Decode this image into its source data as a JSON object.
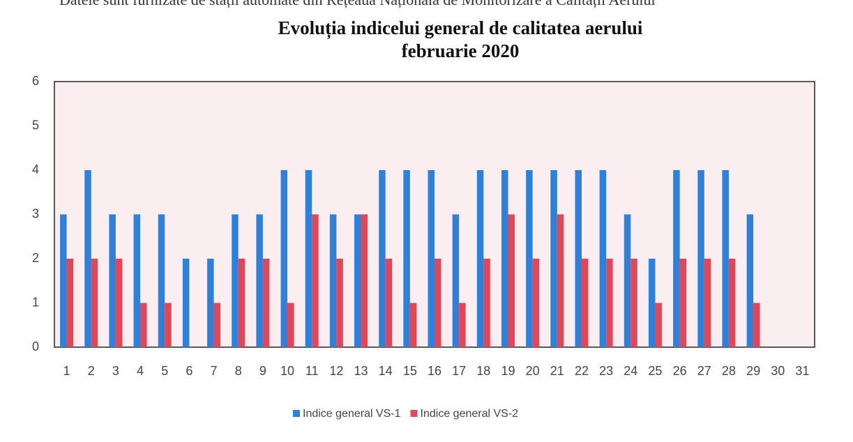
{
  "header_text": "Datele sunt furnizate de stații automate din Rețeaua Națională de Monitorizare a Calității Aerului",
  "chart_data": {
    "type": "bar",
    "title": "Evoluția indicelui general de calitatea aerului",
    "subtitle": "februarie 2020",
    "categories": [
      "1",
      "2",
      "3",
      "4",
      "5",
      "6",
      "7",
      "8",
      "9",
      "10",
      "11",
      "12",
      "13",
      "14",
      "15",
      "16",
      "17",
      "18",
      "19",
      "20",
      "21",
      "22",
      "23",
      "24",
      "25",
      "26",
      "27",
      "28",
      "29",
      "30",
      "31"
    ],
    "series": [
      {
        "name": "Indice general VS-1",
        "color": "#2f80d8",
        "values": [
          3,
          4,
          3,
          3,
          3,
          2,
          2,
          3,
          3,
          4,
          4,
          3,
          3,
          4,
          4,
          4,
          3,
          4,
          4,
          4,
          4,
          4,
          4,
          3,
          2,
          4,
          4,
          4,
          3,
          null,
          null
        ]
      },
      {
        "name": "Indice general VS-2",
        "color": "#e0485a",
        "values": [
          2,
          2,
          2,
          1,
          1,
          null,
          1,
          2,
          2,
          1,
          3,
          2,
          3,
          2,
          1,
          2,
          1,
          2,
          3,
          2,
          3,
          2,
          2,
          2,
          1,
          2,
          2,
          2,
          1,
          null,
          null
        ]
      }
    ],
    "ylim": [
      0,
      6
    ],
    "yticks": [
      0,
      1,
      2,
      3,
      4,
      5,
      6
    ],
    "grid": false,
    "legend": "bottom"
  }
}
